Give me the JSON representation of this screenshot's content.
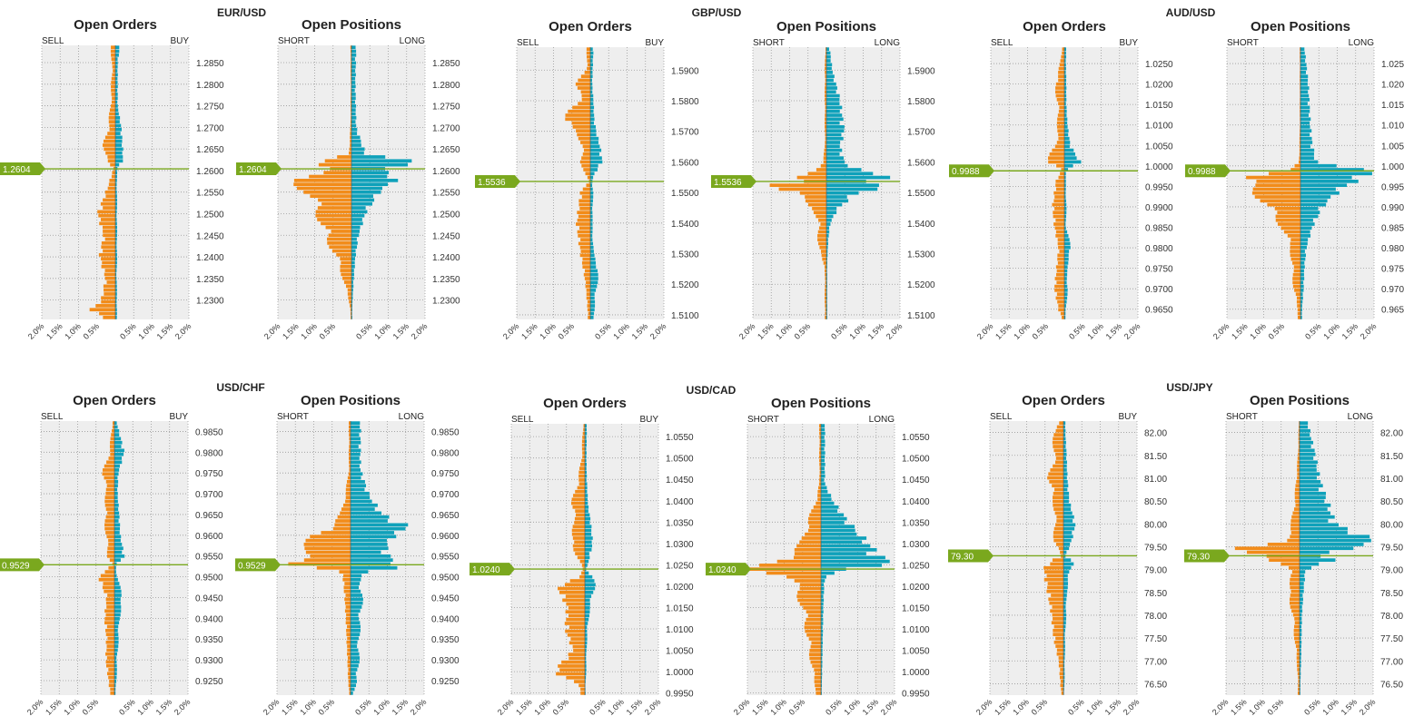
{
  "labels": {
    "open_orders": "Open Orders",
    "open_positions": "Open Positions",
    "sell": "SELL",
    "buy": "BUY",
    "short": "SHORT",
    "long": "LONG",
    "x_ticks": [
      "2.0%",
      "1.5%",
      "1.0%",
      "0.5%",
      "",
      "0.5%",
      "1.0%",
      "1.5%",
      "2.0%"
    ]
  },
  "colors": {
    "sell_or_short": "#F28C1A",
    "buy_or_long": "#0FA1BA",
    "current_price": "#7AA81E",
    "plot_bg": "#EEEEEE",
    "grid": "#999999"
  },
  "chart_data": [
    {
      "type": "bar",
      "pair": "EUR/USD",
      "current_price": "1.2604",
      "current_value": 1.2604,
      "ylim": [
        1.2255,
        1.289
      ],
      "yticks": [
        "1.2850",
        "1.2800",
        "1.2750",
        "1.2700",
        "1.2650",
        "1.2600",
        "1.2550",
        "1.2500",
        "1.2450",
        "1.2400",
        "1.2350",
        "1.2300"
      ],
      "orders": {
        "below_side": "buy",
        "profile": [
          [
            1.289,
            0.15,
            0.12
          ],
          [
            1.285,
            0.1,
            0.06
          ],
          [
            1.28,
            0.12,
            0.06
          ],
          [
            1.275,
            0.14,
            0.06
          ],
          [
            1.27,
            0.22,
            0.15
          ],
          [
            1.266,
            0.35,
            0.18
          ],
          [
            1.2625,
            0.3,
            0.2
          ],
          [
            1.2604,
            0.05,
            0.05
          ],
          [
            1.256,
            0.05,
            0.2
          ],
          [
            1.25,
            0.05,
            0.45
          ],
          [
            1.245,
            0.05,
            0.3
          ],
          [
            1.24,
            0.05,
            0.4
          ],
          [
            1.235,
            0.04,
            0.25
          ],
          [
            1.23,
            0.05,
            0.35
          ],
          [
            1.2275,
            0.05,
            0.65
          ],
          [
            1.2255,
            0.04,
            0.2
          ]
        ]
      },
      "positions": {
        "below_side": "short",
        "profile": [
          [
            1.289,
            0.03,
            0.12
          ],
          [
            1.28,
            0.02,
            0.1
          ],
          [
            1.27,
            0.03,
            0.12
          ],
          [
            1.264,
            0.08,
            0.35
          ],
          [
            1.2615,
            1.0,
            1.9
          ],
          [
            1.2604,
            0.7,
            0.8
          ],
          [
            1.258,
            1.8,
            1.15
          ],
          [
            1.255,
            1.35,
            0.7
          ],
          [
            1.25,
            1.0,
            0.35
          ],
          [
            1.245,
            0.8,
            0.18
          ],
          [
            1.24,
            0.45,
            0.1
          ],
          [
            1.235,
            0.25,
            0.06
          ],
          [
            1.23,
            0.08,
            0.03
          ],
          [
            1.228,
            0.03,
            0.02
          ]
        ]
      }
    },
    {
      "type": "bar",
      "pair": "GBP/USD",
      "current_price": "1.5536",
      "current_value": 1.5536,
      "ylim": [
        1.5085,
        1.5975
      ],
      "yticks": [
        "1.5900",
        "1.5800",
        "1.5700",
        "1.5600",
        "1.5500",
        "1.5400",
        "1.5300",
        "1.5200",
        "1.5100"
      ],
      "orders": {
        "below_side": "buy",
        "profile": [
          [
            1.5975,
            0.1,
            0.08
          ],
          [
            1.59,
            0.12,
            0.06
          ],
          [
            1.585,
            0.45,
            0.05
          ],
          [
            1.58,
            0.25,
            0.08
          ],
          [
            1.574,
            0.9,
            0.1
          ],
          [
            1.57,
            0.4,
            0.15
          ],
          [
            1.565,
            0.25,
            0.25
          ],
          [
            1.56,
            0.28,
            0.3
          ],
          [
            1.556,
            0.15,
            0.1
          ],
          [
            1.5536,
            0.05,
            0.05
          ],
          [
            1.55,
            0.08,
            0.25
          ],
          [
            1.545,
            0.08,
            0.3
          ],
          [
            1.54,
            0.06,
            0.35
          ],
          [
            1.53,
            0.1,
            0.25
          ],
          [
            1.525,
            0.25,
            0.18
          ],
          [
            1.52,
            0.2,
            0.12
          ],
          [
            1.51,
            0.1,
            0.06
          ]
        ]
      },
      "positions": {
        "below_side": "short",
        "profile": [
          [
            1.5975,
            0.03,
            0.08
          ],
          [
            1.59,
            0.05,
            0.15
          ],
          [
            1.58,
            0.05,
            0.35
          ],
          [
            1.57,
            0.05,
            0.45
          ],
          [
            1.565,
            0.05,
            0.35
          ],
          [
            1.56,
            0.1,
            0.45
          ],
          [
            1.557,
            0.4,
            0.9
          ],
          [
            1.5545,
            0.9,
            1.9
          ],
          [
            1.5536,
            0.6,
            0.9
          ],
          [
            1.552,
            1.9,
            1.7
          ],
          [
            1.55,
            1.0,
            0.8
          ],
          [
            1.545,
            0.4,
            0.3
          ],
          [
            1.54,
            0.25,
            0.1
          ],
          [
            1.535,
            0.25,
            0.05
          ],
          [
            1.53,
            0.2,
            0.03
          ],
          [
            1.526,
            0.05,
            0.02
          ]
        ]
      }
    },
    {
      "type": "bar",
      "pair": "AUD/USD",
      "current_price": "0.9988",
      "current_value": 0.9988,
      "ylim": [
        0.9625,
        1.029
      ],
      "yticks": [
        "1.0250",
        "1.0200",
        "1.0150",
        "1.0100",
        "1.0050",
        "1.0000",
        "0.9950",
        "0.9900",
        "0.9850",
        "0.9800",
        "0.9750",
        "0.9700",
        "0.9650"
      ],
      "orders": {
        "below_side": "buy",
        "profile": [
          [
            1.029,
            0.08,
            0.05
          ],
          [
            1.025,
            0.12,
            0.04
          ],
          [
            1.02,
            0.28,
            0.05
          ],
          [
            1.015,
            0.2,
            0.05
          ],
          [
            1.01,
            0.2,
            0.08
          ],
          [
            1.005,
            0.25,
            0.15
          ],
          [
            1.001,
            0.55,
            0.4
          ],
          [
            0.9988,
            0.05,
            0.05
          ],
          [
            0.997,
            0.04,
            0.2
          ],
          [
            0.99,
            0.06,
            0.3
          ],
          [
            0.985,
            0.05,
            0.25
          ],
          [
            0.98,
            0.2,
            0.15
          ],
          [
            0.975,
            0.08,
            0.2
          ],
          [
            0.97,
            0.1,
            0.25
          ],
          [
            0.965,
            0.05,
            0.15
          ],
          [
            0.9625,
            0.03,
            0.05
          ]
        ]
      },
      "positions": {
        "below_side": "short",
        "profile": [
          [
            1.029,
            0.02,
            0.1
          ],
          [
            1.02,
            0.02,
            0.2
          ],
          [
            1.01,
            0.02,
            0.25
          ],
          [
            1.005,
            0.03,
            0.3
          ],
          [
            1.001,
            0.05,
            0.4
          ],
          [
            0.9988,
            0.3,
            1.8
          ],
          [
            0.997,
            2.0,
            1.6
          ],
          [
            0.995,
            1.5,
            1.1
          ],
          [
            0.99,
            1.0,
            0.55
          ],
          [
            0.985,
            0.55,
            0.3
          ],
          [
            0.98,
            0.3,
            0.15
          ],
          [
            0.975,
            0.25,
            0.1
          ],
          [
            0.97,
            0.2,
            0.08
          ],
          [
            0.965,
            0.08,
            0.04
          ]
        ]
      }
    },
    {
      "type": "bar",
      "pair": "USD/CHF",
      "current_price": "0.9529",
      "current_value": 0.9529,
      "ylim": [
        0.9215,
        0.9875
      ],
      "yticks": [
        "0.9850",
        "0.9800",
        "0.9750",
        "0.9700",
        "0.9650",
        "0.9600",
        "0.9550",
        "0.9500",
        "0.9450",
        "0.9400",
        "0.9350",
        "0.9300",
        "0.9250"
      ],
      "orders": {
        "below_side": "buy",
        "profile": [
          [
            0.9875,
            0.06,
            0.05
          ],
          [
            0.98,
            0.15,
            0.25
          ],
          [
            0.975,
            0.35,
            0.1
          ],
          [
            0.97,
            0.25,
            0.08
          ],
          [
            0.965,
            0.3,
            0.12
          ],
          [
            0.96,
            0.25,
            0.15
          ],
          [
            0.955,
            0.2,
            0.25
          ],
          [
            0.9529,
            0.05,
            0.05
          ],
          [
            0.95,
            0.08,
            0.4
          ],
          [
            0.945,
            0.25,
            0.2
          ],
          [
            0.94,
            0.15,
            0.25
          ],
          [
            0.935,
            0.12,
            0.2
          ],
          [
            0.93,
            0.08,
            0.22
          ],
          [
            0.925,
            0.06,
            0.15
          ],
          [
            0.9215,
            0.03,
            0.1
          ]
        ]
      },
      "positions": {
        "below_side": "long",
        "profile": [
          [
            0.976,
            0.05,
            0.25
          ],
          [
            0.97,
            0.15,
            0.45
          ],
          [
            0.965,
            0.3,
            0.8
          ],
          [
            0.962,
            0.6,
            1.5
          ],
          [
            0.96,
            1.2,
            1.1
          ],
          [
            0.957,
            1.3,
            0.9
          ],
          [
            0.9545,
            1.6,
            1.0
          ],
          [
            0.9529,
            2.0,
            1.2
          ],
          [
            0.951,
            0.3,
            0.2
          ],
          [
            0.945,
            0.35,
            0.15
          ],
          [
            0.94,
            0.3,
            0.12
          ],
          [
            0.935,
            0.25,
            0.1
          ],
          [
            0.93,
            0.25,
            0.08
          ],
          [
            0.925,
            0.2,
            0.06
          ],
          [
            0.9215,
            0.05,
            0.03
          ]
        ]
      }
    },
    {
      "type": "bar",
      "pair": "USD/CAD",
      "current_price": "1.0240",
      "current_value": 1.024,
      "ylim": [
        0.9945,
        1.058
      ],
      "yticks": [
        "1.0550",
        "1.0500",
        "1.0450",
        "1.0400",
        "1.0350",
        "1.0300",
        "1.0250",
        "1.0200",
        "1.0150",
        "1.0100",
        "1.0050",
        "1.0000",
        "0.9950"
      ],
      "orders": {
        "below_side": "buy",
        "profile": [
          [
            1.058,
            0.05,
            0.05
          ],
          [
            1.05,
            0.1,
            0.04
          ],
          [
            1.045,
            0.2,
            0.05
          ],
          [
            1.039,
            0.4,
            0.08
          ],
          [
            1.035,
            0.3,
            0.15
          ],
          [
            1.03,
            0.45,
            0.2
          ],
          [
            1.026,
            0.15,
            0.1
          ],
          [
            1.024,
            0.05,
            0.05
          ],
          [
            1.022,
            0.25,
            0.15
          ],
          [
            1.02,
            0.3,
            0.7
          ],
          [
            1.015,
            0.15,
            0.45
          ],
          [
            1.01,
            0.08,
            0.5
          ],
          [
            1.005,
            0.05,
            0.3
          ],
          [
            1.0,
            0.04,
            0.8
          ],
          [
            0.997,
            0.02,
            0.15
          ],
          [
            0.9945,
            0.02,
            0.1
          ]
        ]
      },
      "positions": {
        "below_side": "short",
        "profile": [
          [
            1.044,
            0.05,
            0.1
          ],
          [
            1.04,
            0.15,
            0.3
          ],
          [
            1.035,
            0.4,
            0.7
          ],
          [
            1.03,
            0.6,
            1.2
          ],
          [
            1.027,
            1.0,
            1.5
          ],
          [
            1.025,
            1.8,
            1.9
          ],
          [
            1.024,
            2.0,
            0.6
          ],
          [
            1.022,
            0.9,
            0.1
          ],
          [
            1.02,
            0.8,
            0.08
          ],
          [
            1.015,
            0.55,
            0.06
          ],
          [
            1.01,
            0.45,
            0.05
          ],
          [
            1.005,
            0.35,
            0.04
          ],
          [
            1.0,
            0.25,
            0.03
          ],
          [
            0.996,
            0.15,
            0.02
          ]
        ]
      }
    },
    {
      "type": "bar",
      "pair": "USD/JPY",
      "current_price": "79.30",
      "current_value": 79.3,
      "ylim": [
        76.25,
        82.25
      ],
      "yticks": [
        "82.00",
        "81.50",
        "81.00",
        "80.50",
        "80.00",
        "79.50",
        "79.00",
        "78.50",
        "78.00",
        "77.50",
        "77.00",
        "76.50"
      ],
      "orders": {
        "below_side": "buy",
        "profile": [
          [
            82.25,
            0.08,
            0.05
          ],
          [
            82.0,
            0.35,
            0.05
          ],
          [
            81.5,
            0.25,
            0.08
          ],
          [
            81.0,
            0.45,
            0.1
          ],
          [
            80.5,
            0.3,
            0.15
          ],
          [
            80.0,
            0.25,
            0.3
          ],
          [
            79.6,
            0.3,
            0.2
          ],
          [
            79.3,
            0.05,
            0.05
          ],
          [
            79.15,
            0.3,
            0.4
          ],
          [
            79.0,
            0.2,
            0.5
          ],
          [
            78.5,
            0.1,
            0.4
          ],
          [
            78.0,
            0.08,
            0.3
          ],
          [
            77.5,
            0.05,
            0.25
          ],
          [
            77.0,
            0.04,
            0.12
          ],
          [
            76.5,
            0.03,
            0.08
          ],
          [
            76.25,
            0.02,
            0.05
          ]
        ]
      },
      "positions": {
        "below_side": "short",
        "profile": [
          [
            82.25,
            0.02,
            0.2
          ],
          [
            81.5,
            0.05,
            0.4
          ],
          [
            81.0,
            0.1,
            0.5
          ],
          [
            80.5,
            0.15,
            0.7
          ],
          [
            80.0,
            0.25,
            0.9
          ],
          [
            79.6,
            0.4,
            2.0
          ],
          [
            79.45,
            1.9,
            1.2
          ],
          [
            79.3,
            1.0,
            0.5
          ],
          [
            79.2,
            1.1,
            0.9
          ],
          [
            79.0,
            0.2,
            0.15
          ],
          [
            78.5,
            0.35,
            0.1
          ],
          [
            78.0,
            0.2,
            0.06
          ],
          [
            77.5,
            0.15,
            0.05
          ],
          [
            77.0,
            0.08,
            0.04
          ],
          [
            76.5,
            0.05,
            0.02
          ]
        ]
      }
    }
  ]
}
